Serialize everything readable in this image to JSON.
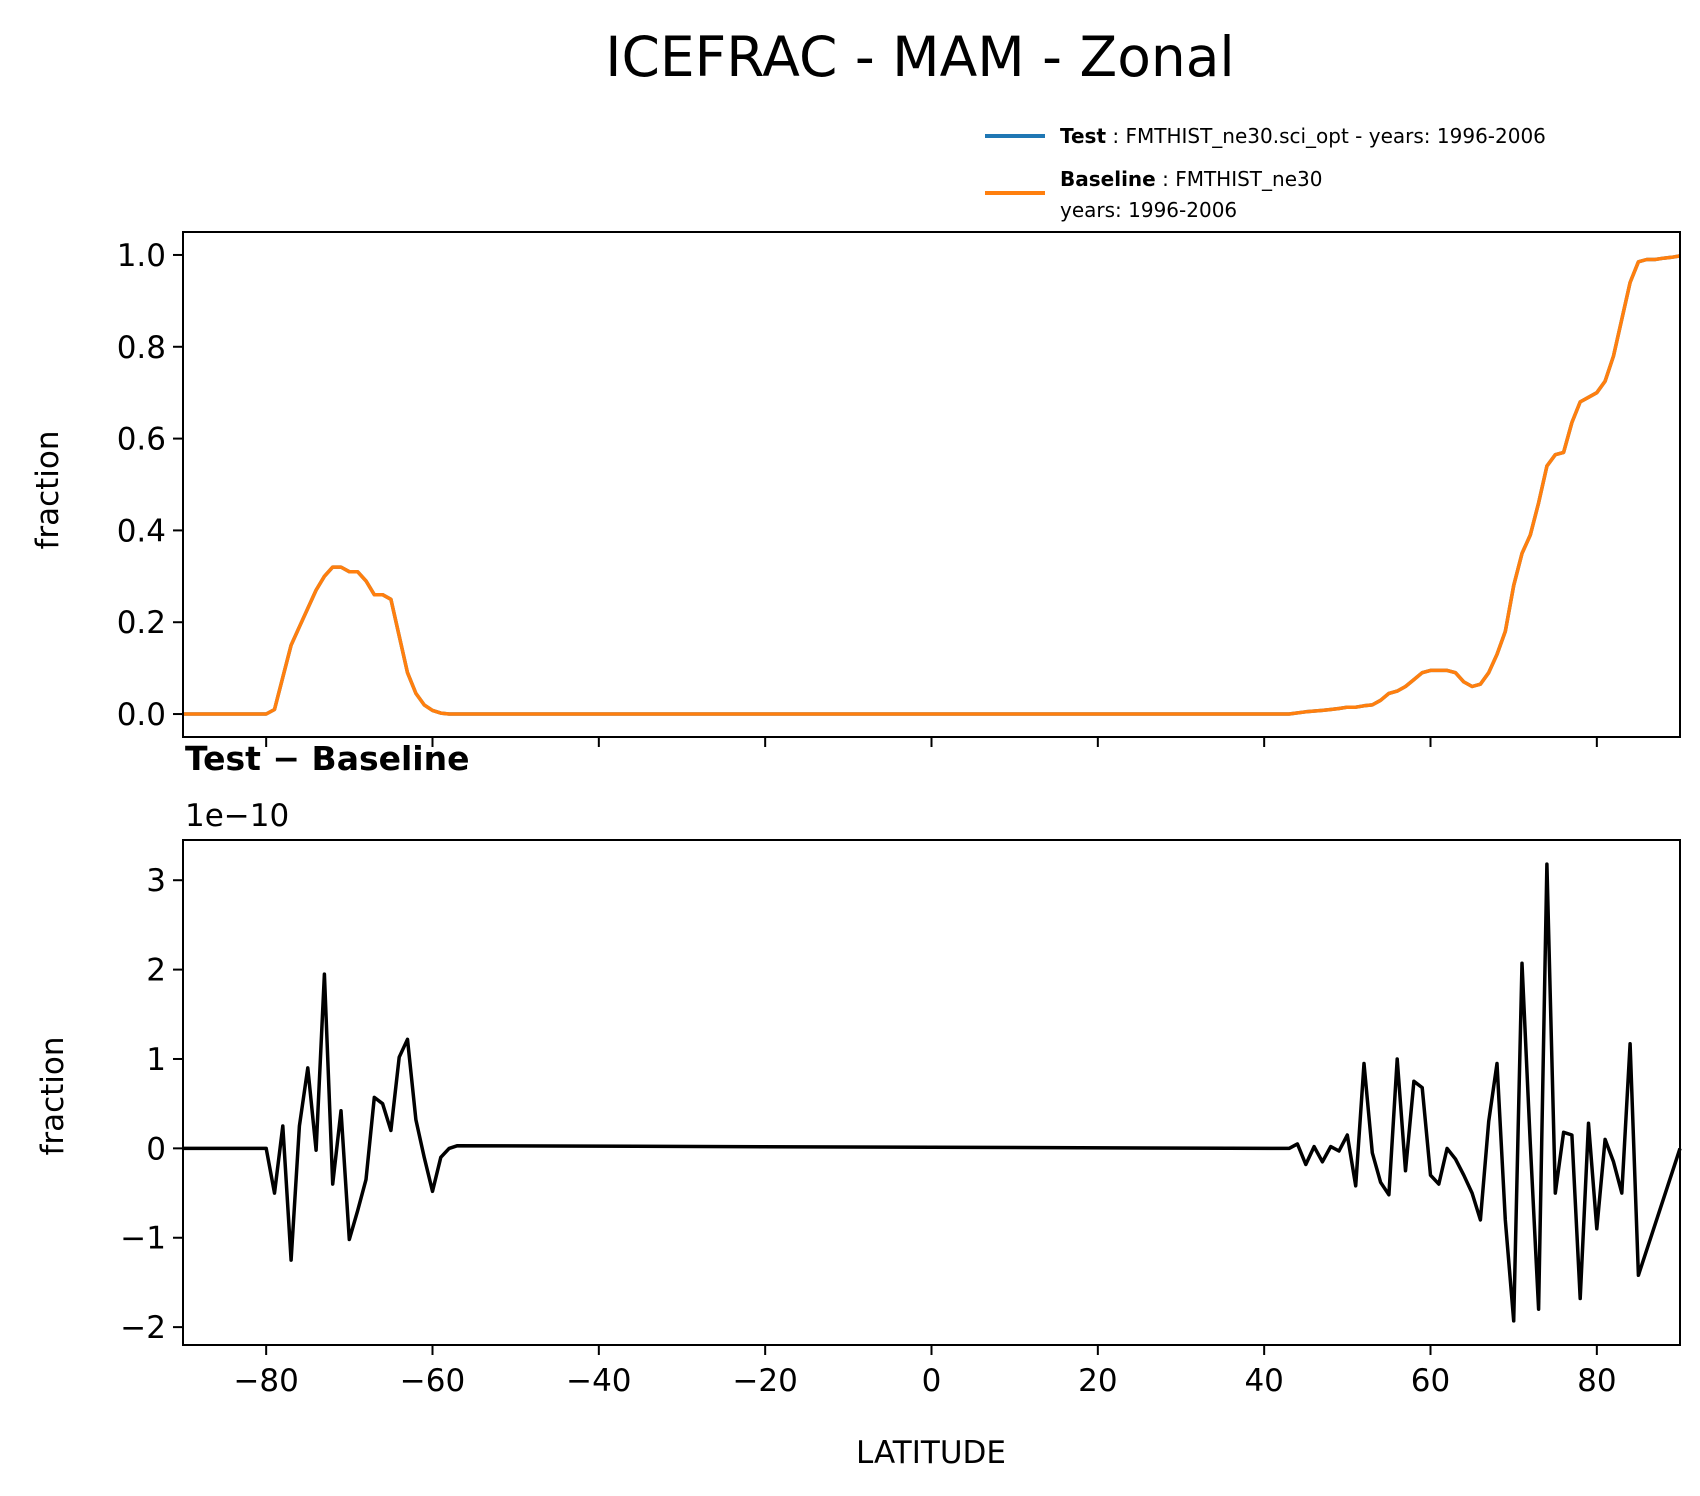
{
  "chart_data": {
    "type": "line",
    "title": "ICEFRAC - MAM - Zonal",
    "legend": {
      "placement": "top-right",
      "entries": [
        {
          "name": "Test",
          "sep": " : ",
          "label": "FMTHIST_ne30.sci_opt - years: 1996-2006",
          "color": "#1f77b4"
        },
        {
          "name": "Baseline",
          "sep": " : ",
          "label": "FMTHIST_ne30",
          "label2": "years: 1996-2006",
          "color": "#ff7f0e"
        }
      ]
    },
    "top": {
      "ylabel": "fraction",
      "xlim": [
        -90,
        90
      ],
      "ylim": [
        -0.05,
        1.05
      ],
      "yticks": [
        0.0,
        0.2,
        0.4,
        0.6,
        0.8,
        1.0
      ],
      "ytick_labels": [
        "0.0",
        "0.2",
        "0.4",
        "0.6",
        "0.8",
        "1.0"
      ],
      "series": [
        {
          "name": "Test",
          "color": "#1f77b4",
          "x": [
            -90,
            -80,
            -79,
            -78,
            -77,
            -76,
            -74,
            -73,
            -72,
            -71,
            -70,
            -69,
            -68,
            -67,
            -66,
            -65,
            -64,
            -63,
            -62,
            -61,
            -60,
            -59,
            -58,
            -56,
            43,
            45,
            47,
            48,
            49,
            50,
            51,
            52,
            53,
            54,
            55,
            56,
            57,
            58,
            59,
            60,
            61,
            62,
            63,
            64,
            65,
            66,
            67,
            68,
            69,
            70,
            71,
            72,
            73,
            74,
            75,
            76,
            77,
            78,
            79,
            80,
            81,
            82,
            83,
            84,
            85,
            86,
            87,
            88,
            89,
            90
          ],
          "y": [
            0,
            0,
            0.01,
            0.08,
            0.15,
            0.19,
            0.27,
            0.3,
            0.32,
            0.32,
            0.31,
            0.31,
            0.29,
            0.26,
            0.26,
            0.25,
            0.17,
            0.09,
            0.045,
            0.02,
            0.008,
            0.002,
            0,
            0,
            0,
            0.005,
            0.008,
            0.01,
            0.012,
            0.015,
            0.015,
            0.018,
            0.02,
            0.03,
            0.045,
            0.05,
            0.06,
            0.075,
            0.09,
            0.095,
            0.095,
            0.095,
            0.09,
            0.07,
            0.06,
            0.065,
            0.09,
            0.13,
            0.18,
            0.28,
            0.35,
            0.39,
            0.46,
            0.54,
            0.565,
            0.57,
            0.635,
            0.68,
            0.69,
            0.7,
            0.725,
            0.78,
            0.86,
            0.94,
            0.985,
            0.99,
            0.99,
            0.993,
            0.995,
            0.998
          ]
        },
        {
          "name": "Baseline",
          "color": "#ff7f0e",
          "x": [
            -90,
            -80,
            -79,
            -78,
            -77,
            -76,
            -74,
            -73,
            -72,
            -71,
            -70,
            -69,
            -68,
            -67,
            -66,
            -65,
            -64,
            -63,
            -62,
            -61,
            -60,
            -59,
            -58,
            -56,
            43,
            45,
            47,
            48,
            49,
            50,
            51,
            52,
            53,
            54,
            55,
            56,
            57,
            58,
            59,
            60,
            61,
            62,
            63,
            64,
            65,
            66,
            67,
            68,
            69,
            70,
            71,
            72,
            73,
            74,
            75,
            76,
            77,
            78,
            79,
            80,
            81,
            82,
            83,
            84,
            85,
            86,
            87,
            88,
            89,
            90
          ],
          "y": [
            0,
            0,
            0.01,
            0.08,
            0.15,
            0.19,
            0.27,
            0.3,
            0.32,
            0.32,
            0.31,
            0.31,
            0.29,
            0.26,
            0.26,
            0.25,
            0.17,
            0.09,
            0.045,
            0.02,
            0.008,
            0.002,
            0,
            0,
            0,
            0.005,
            0.008,
            0.01,
            0.012,
            0.015,
            0.015,
            0.018,
            0.02,
            0.03,
            0.045,
            0.05,
            0.06,
            0.075,
            0.09,
            0.095,
            0.095,
            0.095,
            0.09,
            0.07,
            0.06,
            0.065,
            0.09,
            0.13,
            0.18,
            0.28,
            0.35,
            0.39,
            0.46,
            0.54,
            0.565,
            0.57,
            0.635,
            0.68,
            0.69,
            0.7,
            0.725,
            0.78,
            0.86,
            0.94,
            0.985,
            0.99,
            0.99,
            0.993,
            0.995,
            0.998
          ]
        }
      ]
    },
    "bottom": {
      "title": "Test − Baseline",
      "offset_text": "1e−10",
      "ylabel": "fraction",
      "xlabel": "LATITUDE",
      "xlim": [
        -90,
        90
      ],
      "ylim": [
        -2.2,
        3.45
      ],
      "yticks": [
        -2,
        -1,
        0,
        1,
        2,
        3
      ],
      "ytick_labels": [
        "−2",
        "−1",
        "0",
        "1",
        "2",
        "3"
      ],
      "xticks": [
        -80,
        -60,
        -40,
        -20,
        0,
        20,
        40,
        60,
        80
      ],
      "xtick_labels": [
        "−80",
        "−60",
        "−40",
        "−20",
        "0",
        "20",
        "40",
        "60",
        "80"
      ],
      "series": [
        {
          "name": "Test − Baseline",
          "color": "#000000",
          "x": [
            -90,
            -80,
            -79,
            -78,
            -77,
            -76,
            -75,
            -74,
            -73,
            -72,
            -71,
            -70,
            -69,
            -68,
            -67,
            -66,
            -65,
            -64,
            -63,
            -62,
            -61,
            -60,
            -59,
            -58,
            -57,
            42,
            43,
            44,
            45,
            46,
            47,
            48,
            49,
            50,
            51,
            52,
            53,
            54,
            55,
            56,
            57,
            58,
            59,
            60,
            61,
            62,
            63,
            64,
            65,
            66,
            67,
            68,
            69,
            70,
            71,
            72,
            73,
            74,
            75,
            76,
            77,
            78,
            79,
            80,
            81,
            82,
            83,
            84,
            85,
            90
          ],
          "y": [
            0,
            0,
            -0.5,
            0.25,
            -1.25,
            0.25,
            0.9,
            -0.02,
            1.95,
            -0.4,
            0.42,
            -1.02,
            -0.7,
            -0.35,
            0.57,
            0.5,
            0.2,
            1.02,
            1.22,
            0.32,
            -0.1,
            -0.48,
            -0.1,
            0,
            0.03,
            0,
            0,
            0.05,
            -0.18,
            0.02,
            -0.15,
            0.02,
            -0.03,
            0.15,
            -0.42,
            0.95,
            -0.05,
            -0.38,
            -0.52,
            1.0,
            -0.25,
            0.75,
            0.68,
            -0.3,
            -0.4,
            0,
            -0.12,
            -0.3,
            -0.5,
            -0.8,
            0.3,
            0.95,
            -0.8,
            -1.93,
            2.07,
            0.05,
            -1.8,
            3.18,
            -0.5,
            0.18,
            0.15,
            -1.68,
            0.28,
            -0.9,
            0.1,
            -0.15,
            -0.5,
            1.17,
            -1.42,
            0
          ]
        }
      ]
    }
  }
}
